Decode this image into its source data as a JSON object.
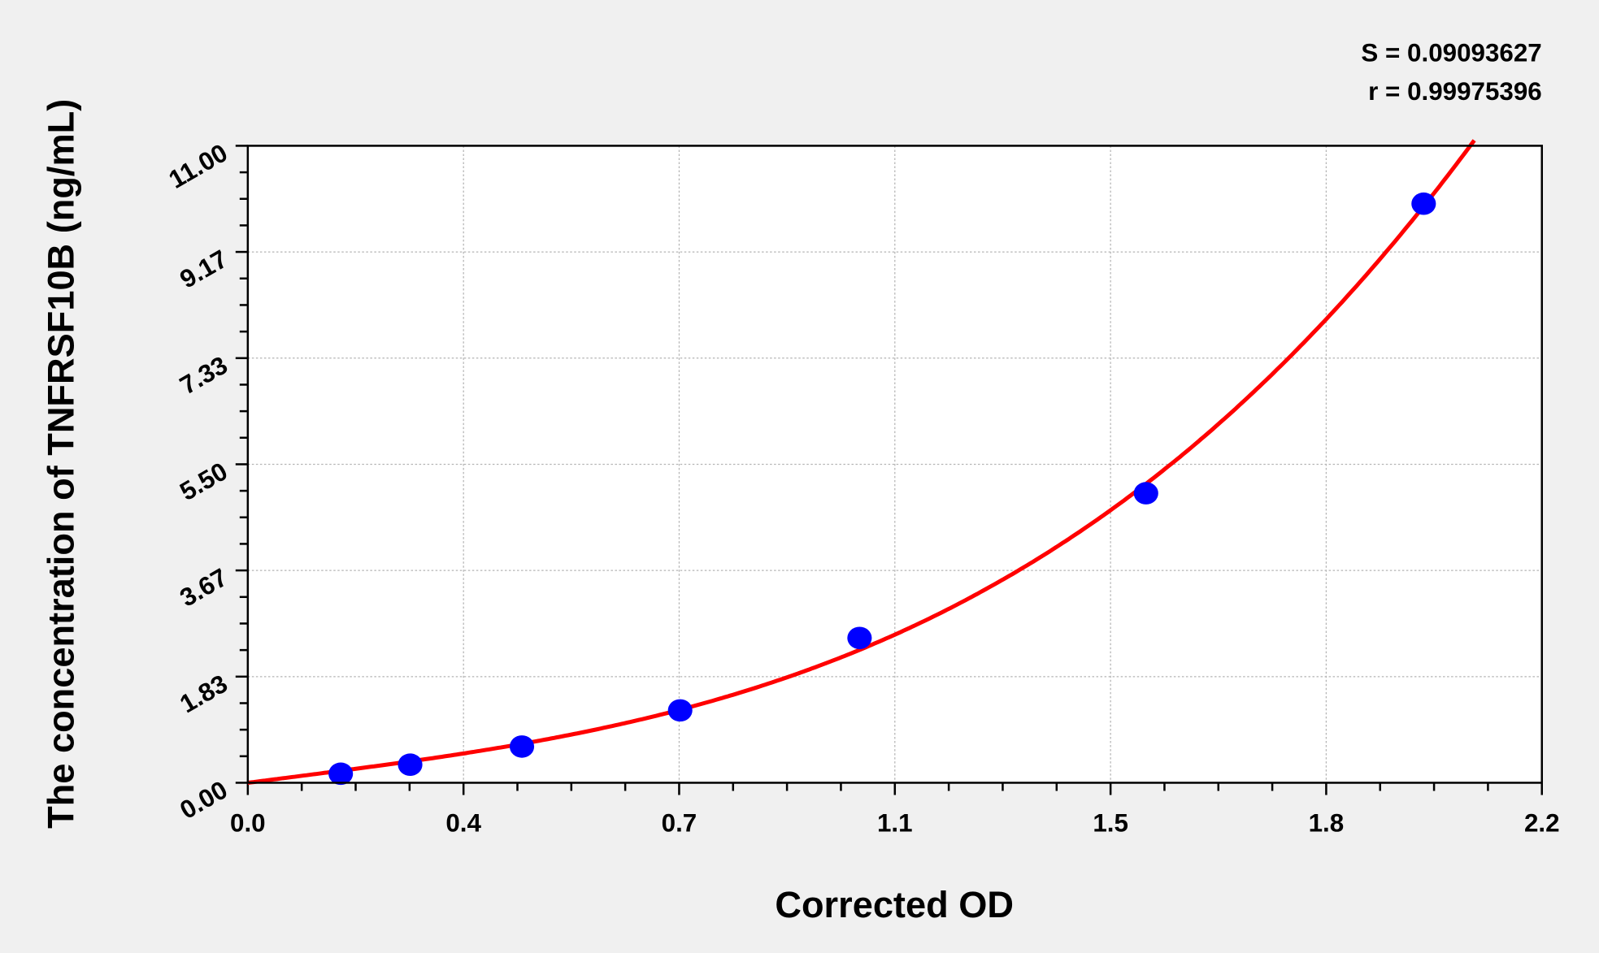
{
  "chart_data": {
    "type": "scatter",
    "title": "",
    "xlabel": "Corrected OD",
    "ylabel": "The concentration of TNFRSF10B (ng/mL)",
    "xlim": [
      0,
      2.2
    ],
    "ylim": [
      0,
      11
    ],
    "x_ticks": [
      0,
      0.3667,
      0.7333,
      1.1,
      1.4667,
      1.8333,
      2.2
    ],
    "x_tick_labels": [
      "0.0",
      "0.4",
      "0.7",
      "1.1",
      "1.5",
      "1.8",
      "2.2"
    ],
    "y_ticks": [
      0,
      1.833,
      3.667,
      5.5,
      7.333,
      9.167,
      11
    ],
    "y_tick_labels": [
      "0.00",
      "1.83",
      "3.67",
      "5.50",
      "7.33",
      "9.17",
      "11.00"
    ],
    "grid": true,
    "points": [
      {
        "x": 0.158,
        "y": 0.156
      },
      {
        "x": 0.276,
        "y": 0.3125
      },
      {
        "x": 0.466,
        "y": 0.625
      },
      {
        "x": 0.735,
        "y": 1.25
      },
      {
        "x": 1.04,
        "y": 2.5
      },
      {
        "x": 1.527,
        "y": 5.0
      },
      {
        "x": 1.999,
        "y": 10.0
      }
    ],
    "fit_curve": "smooth fitted standard curve",
    "stats": {
      "s_text": "S = 0.09093627",
      "r_text": "r = 0.99975396"
    },
    "colors": {
      "points": "#0000ff",
      "curve": "#ff0000",
      "grid": "#b4b4b4",
      "background": "#f0f0f0",
      "plot_bg": "#ffffff"
    }
  }
}
